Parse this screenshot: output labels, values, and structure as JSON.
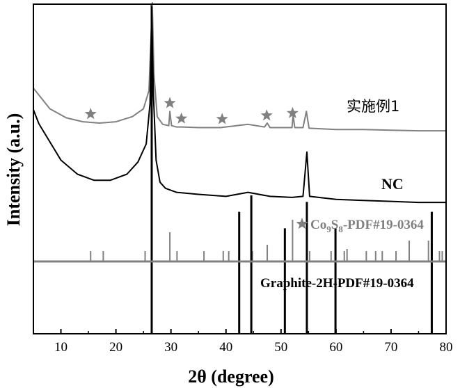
{
  "chart_data": {
    "type": "line",
    "xlabel": "2θ (degree)",
    "ylabel": "Intensity (a.u.)",
    "xlim": [
      5,
      80
    ],
    "x_ticks": [
      "10",
      "20",
      "30",
      "40",
      "50",
      "60",
      "70",
      "80"
    ],
    "series": [
      {
        "name": "实施例1",
        "color": "#808080",
        "points": [
          [
            5,
            0.34
          ],
          [
            8,
            0.18
          ],
          [
            11,
            0.11
          ],
          [
            14,
            0.08
          ],
          [
            17,
            0.07
          ],
          [
            20,
            0.08
          ],
          [
            23,
            0.12
          ],
          [
            25,
            0.18
          ],
          [
            26,
            0.32
          ],
          [
            26.4,
            0.75
          ],
          [
            26.6,
            1.0
          ],
          [
            26.9,
            0.45
          ],
          [
            27.5,
            0.12
          ],
          [
            28.5,
            0.06
          ],
          [
            29.6,
            0.05
          ],
          [
            29.8,
            0.16
          ],
          [
            30.1,
            0.05
          ],
          [
            31,
            0.04
          ],
          [
            32,
            0.04
          ],
          [
            35,
            0.035
          ],
          [
            39,
            0.035
          ],
          [
            44,
            0.06
          ],
          [
            47,
            0.04
          ],
          [
            47.5,
            0.07
          ],
          [
            48,
            0.035
          ],
          [
            52,
            0.035
          ],
          [
            52.2,
            0.13
          ],
          [
            52.5,
            0.035
          ],
          [
            54,
            0.035
          ],
          [
            54.6,
            0.16
          ],
          [
            55.1,
            0.03
          ],
          [
            60,
            0.02
          ],
          [
            65,
            0.02
          ],
          [
            70,
            0.015
          ],
          [
            75,
            0.01
          ],
          [
            80,
            0.01
          ]
        ],
        "star_markers_x": [
          15.4,
          29.8,
          31.9,
          39.3,
          47.4,
          52.1
        ]
      },
      {
        "name": "NC",
        "color": "#000000",
        "points": [
          [
            5,
            0.47
          ],
          [
            6,
            0.4
          ],
          [
            8,
            0.31
          ],
          [
            10,
            0.22
          ],
          [
            13,
            0.15
          ],
          [
            16,
            0.12
          ],
          [
            19,
            0.12
          ],
          [
            22,
            0.15
          ],
          [
            24,
            0.21
          ],
          [
            25.5,
            0.3
          ],
          [
            26.2,
            0.5
          ],
          [
            26.5,
            0.98
          ],
          [
            26.8,
            0.55
          ],
          [
            27.3,
            0.22
          ],
          [
            28,
            0.11
          ],
          [
            29,
            0.08
          ],
          [
            31,
            0.06
          ],
          [
            35,
            0.05
          ],
          [
            40,
            0.04
          ],
          [
            44,
            0.06
          ],
          [
            48,
            0.04
          ],
          [
            52,
            0.035
          ],
          [
            54,
            0.04
          ],
          [
            54.7,
            0.26
          ],
          [
            55.2,
            0.04
          ],
          [
            60,
            0.025
          ],
          [
            65,
            0.02
          ],
          [
            70,
            0.015
          ],
          [
            75,
            0.01
          ],
          [
            80,
            0.01
          ]
        ]
      }
    ],
    "reference_patterns": [
      {
        "name": "Co9S8-PDF#19-0364",
        "label_prefix": "Co",
        "label_sub1": "9",
        "label_mid": "S",
        "label_sub2": "8",
        "label_suffix": "-PDF#19-0364",
        "color": "#808080",
        "lines": [
          [
            15.4,
            0.25
          ],
          [
            17.7,
            0.25
          ],
          [
            25.3,
            0.25
          ],
          [
            29.8,
            0.7
          ],
          [
            31.1,
            0.25
          ],
          [
            36.0,
            0.25
          ],
          [
            39.5,
            0.25
          ],
          [
            40.5,
            0.25
          ],
          [
            44.8,
            0.25
          ],
          [
            47.5,
            0.4
          ],
          [
            52.1,
            1.0
          ],
          [
            55.2,
            0.25
          ],
          [
            59.1,
            0.25
          ],
          [
            61.5,
            0.25
          ],
          [
            62.0,
            0.3
          ],
          [
            65.5,
            0.25
          ],
          [
            67.2,
            0.25
          ],
          [
            68.4,
            0.25
          ],
          [
            70.9,
            0.25
          ],
          [
            73.3,
            0.5
          ],
          [
            76.8,
            0.5
          ],
          [
            78.8,
            0.25
          ],
          [
            79.3,
            0.25
          ]
        ]
      },
      {
        "name": "Graphite-2H-PDF#19-0364",
        "label": "Graphite-2H-PDF#19-0364",
        "color": "#000000",
        "lines": [
          [
            26.5,
            1.0
          ],
          [
            42.4,
            0.37
          ],
          [
            44.6,
            0.42
          ],
          [
            50.7,
            0.32
          ],
          [
            54.7,
            0.4
          ],
          [
            59.9,
            0.32
          ],
          [
            77.4,
            0.37
          ]
        ]
      }
    ],
    "grid": false
  }
}
